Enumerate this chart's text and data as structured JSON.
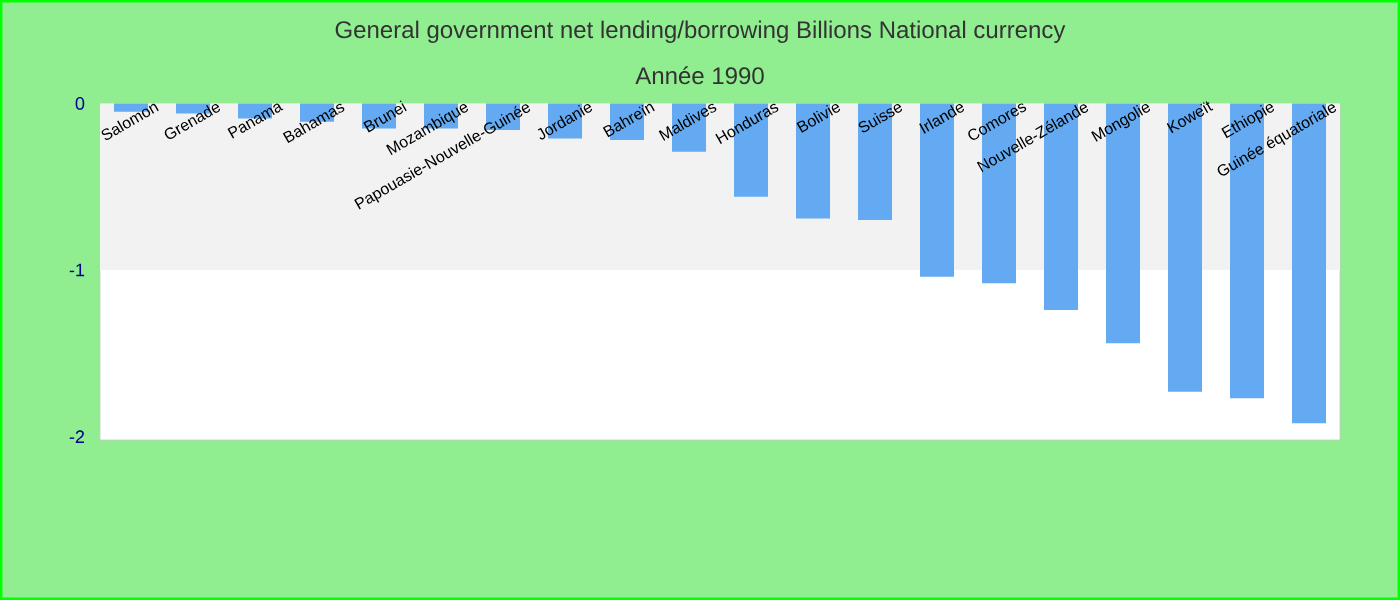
{
  "chart_data": {
    "type": "bar",
    "title": "General government net lending/borrowing Billions National currency",
    "subtitle": "Année 1990",
    "categories": [
      "Salomon",
      "Grenade",
      "Panama",
      "Bahamas",
      "Brunei",
      "Mozambique",
      "Papouasie-Nouvelle-Guinée",
      "Jordanie",
      "Bahreïn",
      "Maldives",
      "Honduras",
      "Bolivie",
      "Suisse",
      "Irlande",
      "Comores",
      "Nouvelle-Zélande",
      "Mongolie",
      "Koweït",
      "Ethiopie",
      "Guinée équatoriale"
    ],
    "values": [
      -0.05,
      -0.06,
      -0.09,
      -0.11,
      -0.15,
      -0.15,
      -0.16,
      -0.21,
      -0.22,
      -0.29,
      -0.56,
      -0.69,
      -0.7,
      -1.04,
      -1.08,
      -1.24,
      -1.44,
      -1.73,
      -1.77,
      -1.92
    ],
    "color": "#63aaf2",
    "ylim": [
      -2.02,
      0
    ],
    "yticks": [
      0,
      -1,
      -2
    ],
    "bands": [
      {
        "axis": "y",
        "from": -1,
        "to": 0,
        "color": "#f2f2f2"
      }
    ]
  }
}
